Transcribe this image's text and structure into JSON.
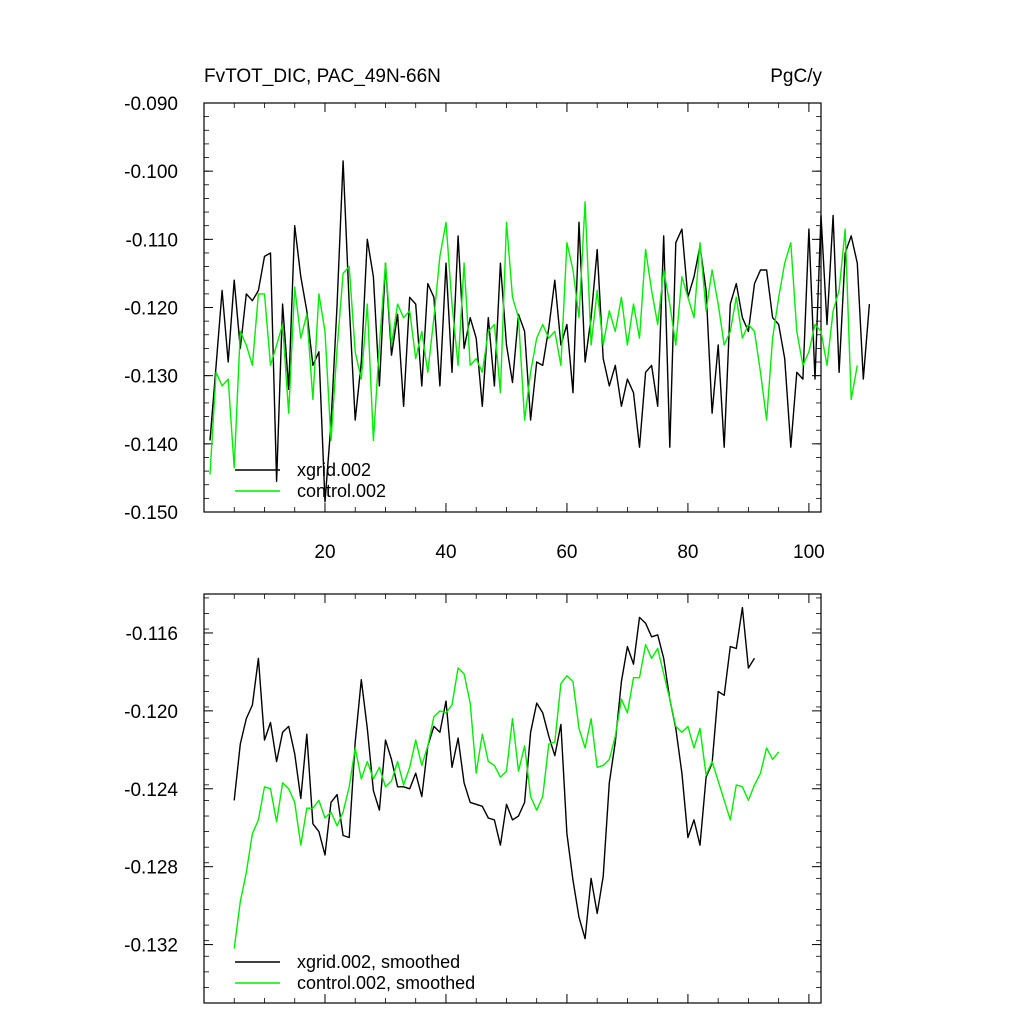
{
  "chart_data": [
    {
      "type": "line",
      "title_left": "FvTOT_DIC, PAC_49N-66N",
      "title_right": "PgC/y",
      "xlim": [
        0,
        102
      ],
      "ylim": [
        -0.15,
        -0.09
      ],
      "xticks": [
        20,
        40,
        60,
        80,
        100
      ],
      "yticks": [
        -0.15,
        -0.14,
        -0.13,
        -0.12,
        -0.11,
        -0.1,
        -0.09
      ],
      "ytick_labels": [
        "-0.150",
        "-0.140",
        "-0.130",
        "-0.120",
        "-0.110",
        "-0.100",
        "-0.090"
      ],
      "legend_position": "bottom-left",
      "x_start": 1,
      "series": [
        {
          "name": "xgrid.002",
          "color": "#000000",
          "values": [
            -0.1395,
            -0.1285,
            -0.1175,
            -0.128,
            -0.116,
            -0.126,
            -0.118,
            -0.119,
            -0.1175,
            -0.1125,
            -0.112,
            -0.1455,
            -0.1195,
            -0.132,
            -0.108,
            -0.1155,
            -0.1205,
            -0.1285,
            -0.1265,
            -0.1485,
            -0.137,
            -0.1195,
            -0.0985,
            -0.1195,
            -0.1365,
            -0.128,
            -0.11,
            -0.1155,
            -0.1315,
            -0.1135,
            -0.127,
            -0.121,
            -0.1345,
            -0.1185,
            -0.1195,
            -0.1315,
            -0.1165,
            -0.1185,
            -0.1315,
            -0.1135,
            -0.1295,
            -0.1095,
            -0.126,
            -0.1215,
            -0.1245,
            -0.1345,
            -0.1215,
            -0.1315,
            -0.1135,
            -0.1255,
            -0.131,
            -0.121,
            -0.1235,
            -0.1365,
            -0.128,
            -0.1285,
            -0.123,
            -0.116,
            -0.1255,
            -0.1225,
            -0.1325,
            -0.1075,
            -0.128,
            -0.1215,
            -0.1115,
            -0.1275,
            -0.1315,
            -0.1285,
            -0.1345,
            -0.1305,
            -0.1325,
            -0.1405,
            -0.1295,
            -0.1285,
            -0.1345,
            -0.1095,
            -0.1405,
            -0.1105,
            -0.1085,
            -0.1185,
            -0.1155,
            -0.111,
            -0.1175,
            -0.1355,
            -0.1255,
            -0.1405,
            -0.1195,
            -0.1165,
            -0.1215,
            -0.1235,
            -0.1165,
            -0.1145,
            -0.1145,
            -0.1215,
            -0.1225,
            -0.1275,
            -0.1405,
            -0.1295,
            -0.1305,
            -0.1085,
            -0.1305,
            -0.1065,
            -0.1225,
            -0.1065,
            -0.1295,
            -0.112,
            -0.1095,
            -0.1135,
            -0.1305,
            -0.1195
          ]
        },
        {
          "name": "control.002",
          "color": "#00ee00",
          "values": [
            -0.1445,
            -0.1295,
            -0.1315,
            -0.1305,
            -0.1435,
            -0.1235,
            -0.1255,
            -0.1285,
            -0.118,
            -0.118,
            -0.1285,
            -0.1255,
            -0.1225,
            -0.1355,
            -0.117,
            -0.1245,
            -0.121,
            -0.1335,
            -0.118,
            -0.1235,
            -0.1395,
            -0.126,
            -0.115,
            -0.114,
            -0.1265,
            -0.1305,
            -0.1195,
            -0.1395,
            -0.1255,
            -0.1135,
            -0.1255,
            -0.1195,
            -0.1215,
            -0.1205,
            -0.1275,
            -0.1235,
            -0.1295,
            -0.1215,
            -0.1125,
            -0.1075,
            -0.1195,
            -0.1285,
            -0.1135,
            -0.1285,
            -0.1275,
            -0.1295,
            -0.1235,
            -0.1225,
            -0.1325,
            -0.1075,
            -0.1185,
            -0.1215,
            -0.1365,
            -0.1295,
            -0.1245,
            -0.1225,
            -0.1245,
            -0.1235,
            -0.1285,
            -0.1105,
            -0.1145,
            -0.1215,
            -0.1045,
            -0.1255,
            -0.1175,
            -0.1255,
            -0.1205,
            -0.1235,
            -0.1185,
            -0.1255,
            -0.1195,
            -0.1245,
            -0.1115,
            -0.1175,
            -0.1225,
            -0.1145,
            -0.1195,
            -0.1255,
            -0.1155,
            -0.1185,
            -0.1215,
            -0.1105,
            -0.1205,
            -0.1145,
            -0.1195,
            -0.1255,
            -0.1235,
            -0.1185,
            -0.1245,
            -0.1225,
            -0.1235,
            -0.1295,
            -0.1365,
            -0.1245,
            -0.1185,
            -0.1135,
            -0.1105,
            -0.1235,
            -0.1285,
            -0.1265,
            -0.1225,
            -0.1235,
            -0.1285,
            -0.1205,
            -0.1175,
            -0.1085,
            -0.1335,
            -0.1285
          ]
        }
      ]
    },
    {
      "type": "line",
      "xlim": [
        0,
        102
      ],
      "ylim": [
        -0.135,
        -0.114
      ],
      "xticks": [
        20,
        40,
        60,
        80,
        100
      ],
      "yticks": [
        -0.132,
        -0.128,
        -0.124,
        -0.12,
        -0.116
      ],
      "ytick_labels": [
        "-0.132",
        "-0.128",
        "-0.124",
        "-0.120",
        "-0.116"
      ],
      "legend_position": "bottom-left",
      "x_start": 5,
      "series": [
        {
          "name": "xgrid.002, smoothed",
          "color": "#000000",
          "values": [
            -0.1246,
            -0.1217,
            -0.1204,
            -0.1197,
            -0.1173,
            -0.1215,
            -0.1206,
            -0.1226,
            -0.1211,
            -0.1208,
            -0.1222,
            -0.1245,
            -0.1212,
            -0.1258,
            -0.1262,
            -0.1274,
            -0.1247,
            -0.1243,
            -0.1264,
            -0.1265,
            -0.1216,
            -0.1184,
            -0.1209,
            -0.1241,
            -0.1251,
            -0.1215,
            -0.1225,
            -0.1239,
            -0.1239,
            -0.124,
            -0.1232,
            -0.1244,
            -0.1218,
            -0.1208,
            -0.1211,
            -0.1195,
            -0.1229,
            -0.1214,
            -0.1237,
            -0.1247,
            -0.1248,
            -0.1249,
            -0.1255,
            -0.1256,
            -0.1269,
            -0.1248,
            -0.1256,
            -0.1254,
            -0.1247,
            -0.1211,
            -0.1196,
            -0.1201,
            -0.1213,
            -0.1223,
            -0.1207,
            -0.1263,
            -0.1287,
            -0.1306,
            -0.1317,
            -0.1286,
            -0.1304,
            -0.1285,
            -0.1237,
            -0.1216,
            -0.1185,
            -0.1167,
            -0.1176,
            -0.1152,
            -0.1155,
            -0.1162,
            -0.1161,
            -0.1173,
            -0.1194,
            -0.1209,
            -0.1232,
            -0.1265,
            -0.1256,
            -0.1269,
            -0.1234,
            -0.1227,
            -0.119,
            -0.1192,
            -0.1167,
            -0.1168,
            -0.1147,
            -0.1178,
            -0.1173
          ]
        },
        {
          "name": "control.002, smoothed",
          "color": "#00ee00",
          "values": [
            -0.1322,
            -0.1298,
            -0.1283,
            -0.1263,
            -0.1256,
            -0.1239,
            -0.124,
            -0.1257,
            -0.1237,
            -0.124,
            -0.1247,
            -0.1269,
            -0.125,
            -0.125,
            -0.1246,
            -0.1255,
            -0.1252,
            -0.1259,
            -0.1252,
            -0.1239,
            -0.1219,
            -0.1235,
            -0.1226,
            -0.1235,
            -0.1229,
            -0.1239,
            -0.1236,
            -0.1226,
            -0.1238,
            -0.1229,
            -0.1215,
            -0.1228,
            -0.1218,
            -0.1203,
            -0.12,
            -0.1201,
            -0.1197,
            -0.1178,
            -0.1181,
            -0.1196,
            -0.1232,
            -0.1212,
            -0.1226,
            -0.1228,
            -0.1234,
            -0.1231,
            -0.1204,
            -0.1231,
            -0.1218,
            -0.1244,
            -0.1251,
            -0.1244,
            -0.1217,
            -0.1216,
            -0.1186,
            -0.1182,
            -0.1185,
            -0.1209,
            -0.1219,
            -0.1204,
            -0.1229,
            -0.1228,
            -0.1225,
            -0.1213,
            -0.1194,
            -0.1201,
            -0.1183,
            -0.1183,
            -0.1166,
            -0.1173,
            -0.1168,
            -0.1181,
            -0.1194,
            -0.1208,
            -0.1211,
            -0.1208,
            -0.1219,
            -0.1209,
            -0.1233,
            -0.1226,
            -0.1236,
            -0.1246,
            -0.1256,
            -0.1238,
            -0.1239,
            -0.1246,
            -0.1238,
            -0.1232,
            -0.1219,
            -0.1225,
            -0.1221
          ]
        }
      ]
    }
  ]
}
